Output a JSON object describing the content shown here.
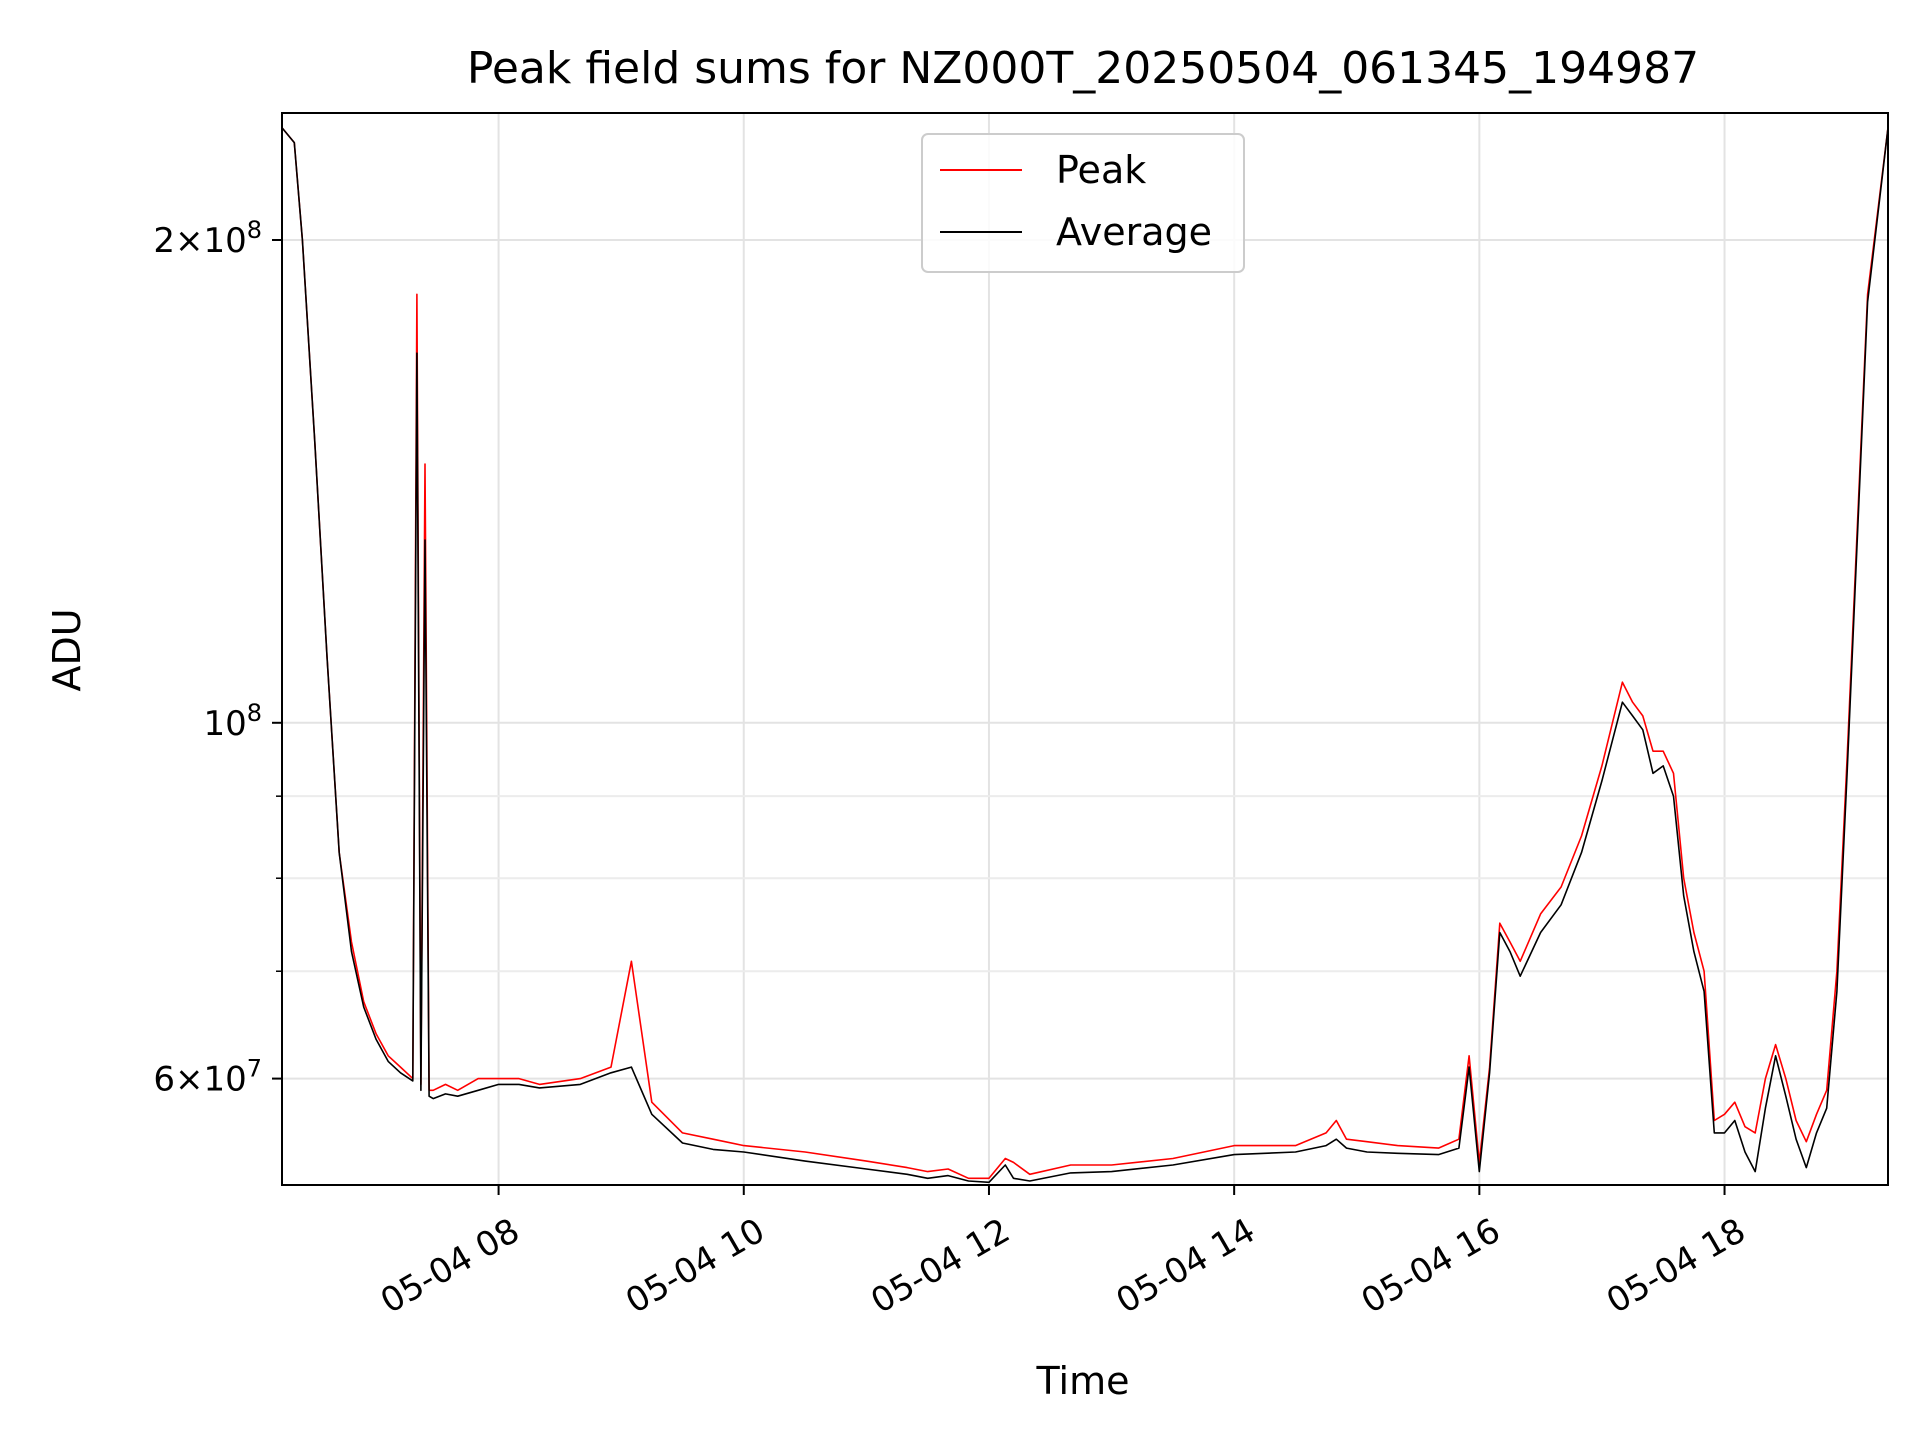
{
  "chart_data": {
    "type": "line",
    "title": "Peak field sums for NZ000T_20250504_061345_194987",
    "xlabel": "Time",
    "ylabel": "ADU",
    "yscale": "log",
    "xlim": [
      "05-04 06:14",
      "05-04 19:20"
    ],
    "ylim": [
      51500000,
      240000000
    ],
    "grid": true,
    "legend_position": "upper center",
    "x_tick_labels": [
      "05-04 08",
      "05-04 10",
      "05-04 12",
      "05-04 14",
      "05-04 16",
      "05-04 18"
    ],
    "x_tick_times": [
      "05-04 08:00",
      "05-04 10:00",
      "05-04 12:00",
      "05-04 14:00",
      "05-04 16:00",
      "05-04 18:00"
    ],
    "y_tick_labels": [
      {
        "value": 60000000,
        "mantissa": "6",
        "exponent": "7"
      },
      {
        "value": 100000000,
        "mantissa": "",
        "exponent": "8"
      },
      {
        "value": 200000000,
        "mantissa": "2",
        "exponent": "8"
      }
    ],
    "y_minor_ticks": [
      70000000,
      80000000,
      90000000
    ],
    "series": [
      {
        "name": "Peak",
        "color": "#ff0000",
        "x": [
          "05-04 06:14",
          "05-04 06:20",
          "05-04 06:24",
          "05-04 06:30",
          "05-04 06:36",
          "05-04 06:42",
          "05-04 06:48",
          "05-04 06:54",
          "05-04 07:00",
          "05-04 07:06",
          "05-04 07:12",
          "05-04 07:18",
          "05-04 07:20",
          "05-04 07:22",
          "05-04 07:24",
          "05-04 07:26",
          "05-04 07:28",
          "05-04 07:34",
          "05-04 07:40",
          "05-04 07:50",
          "05-04 08:00",
          "05-04 08:10",
          "05-04 08:20",
          "05-04 08:40",
          "05-04 08:55",
          "05-04 09:05",
          "05-04 09:15",
          "05-04 09:30",
          "05-04 09:45",
          "05-04 10:00",
          "05-04 10:30",
          "05-04 11:00",
          "05-04 11:20",
          "05-04 11:30",
          "05-04 11:40",
          "05-04 11:50",
          "05-04 12:00",
          "05-04 12:08",
          "05-04 12:12",
          "05-04 12:20",
          "05-04 12:40",
          "05-04 13:00",
          "05-04 13:30",
          "05-04 14:00",
          "05-04 14:30",
          "05-04 14:45",
          "05-04 14:50",
          "05-04 14:55",
          "05-04 15:05",
          "05-04 15:20",
          "05-04 15:40",
          "05-04 15:50",
          "05-04 15:55",
          "05-04 16:00",
          "05-04 16:05",
          "05-04 16:10",
          "05-04 16:15",
          "05-04 16:20",
          "05-04 16:30",
          "05-04 16:40",
          "05-04 16:50",
          "05-04 17:00",
          "05-04 17:10",
          "05-04 17:15",
          "05-04 17:20",
          "05-04 17:25",
          "05-04 17:30",
          "05-04 17:35",
          "05-04 17:40",
          "05-04 17:45",
          "05-04 17:50",
          "05-04 17:55",
          "05-04 18:00",
          "05-04 18:05",
          "05-04 18:10",
          "05-04 18:15",
          "05-04 18:20",
          "05-04 18:25",
          "05-04 18:30",
          "05-04 18:35",
          "05-04 18:40",
          "05-04 18:45",
          "05-04 18:50",
          "05-04 18:55",
          "05-04 19:00",
          "05-04 19:10",
          "05-04 19:20"
        ],
        "y": [
          235000000,
          230000000,
          200000000,
          150000000,
          110000000,
          83000000,
          73000000,
          67000000,
          64000000,
          62000000,
          61000000,
          60000000,
          185000000,
          59500000,
          145000000,
          59000000,
          59000000,
          59500000,
          59000000,
          60000000,
          60000000,
          60000000,
          59500000,
          60000000,
          61000000,
          71000000,
          58000000,
          55500000,
          55000000,
          54500000,
          54000000,
          53300000,
          52800000,
          52500000,
          52700000,
          52000000,
          52000000,
          53500000,
          53200000,
          52300000,
          53000000,
          53000000,
          53500000,
          54500000,
          54500000,
          55500000,
          56500000,
          55000000,
          54800000,
          54500000,
          54300000,
          55000000,
          62000000,
          53200000,
          61000000,
          75000000,
          73000000,
          71000000,
          76000000,
          79000000,
          85000000,
          94000000,
          106000000,
          103000000,
          101000000,
          96000000,
          96000000,
          93000000,
          80000000,
          74000000,
          70000000,
          56500000,
          57000000,
          58000000,
          56000000,
          55500000,
          60000000,
          63000000,
          60000000,
          56500000,
          54800000,
          57000000,
          59000000,
          70000000,
          95000000,
          185000000,
          235000000
        ]
      },
      {
        "name": "Average",
        "color": "#000000",
        "x": [
          "05-04 06:14",
          "05-04 06:20",
          "05-04 06:24",
          "05-04 06:30",
          "05-04 06:36",
          "05-04 06:42",
          "05-04 06:48",
          "05-04 06:54",
          "05-04 07:00",
          "05-04 07:06",
          "05-04 07:12",
          "05-04 07:18",
          "05-04 07:20",
          "05-04 07:22",
          "05-04 07:24",
          "05-04 07:26",
          "05-04 07:28",
          "05-04 07:34",
          "05-04 07:40",
          "05-04 07:50",
          "05-04 08:00",
          "05-04 08:10",
          "05-04 08:20",
          "05-04 08:40",
          "05-04 08:55",
          "05-04 09:05",
          "05-04 09:15",
          "05-04 09:30",
          "05-04 09:45",
          "05-04 10:00",
          "05-04 10:30",
          "05-04 11:00",
          "05-04 11:20",
          "05-04 11:30",
          "05-04 11:40",
          "05-04 11:50",
          "05-04 12:00",
          "05-04 12:08",
          "05-04 12:12",
          "05-04 12:20",
          "05-04 12:40",
          "05-04 13:00",
          "05-04 13:30",
          "05-04 14:00",
          "05-04 14:30",
          "05-04 14:45",
          "05-04 14:50",
          "05-04 14:55",
          "05-04 15:05",
          "05-04 15:20",
          "05-04 15:40",
          "05-04 15:50",
          "05-04 15:55",
          "05-04 16:00",
          "05-04 16:05",
          "05-04 16:10",
          "05-04 16:15",
          "05-04 16:20",
          "05-04 16:30",
          "05-04 16:40",
          "05-04 16:50",
          "05-04 17:00",
          "05-04 17:10",
          "05-04 17:15",
          "05-04 17:20",
          "05-04 17:25",
          "05-04 17:30",
          "05-04 17:35",
          "05-04 17:40",
          "05-04 17:45",
          "05-04 17:50",
          "05-04 17:55",
          "05-04 18:00",
          "05-04 18:05",
          "05-04 18:10",
          "05-04 18:15",
          "05-04 18:20",
          "05-04 18:25",
          "05-04 18:30",
          "05-04 18:35",
          "05-04 18:40",
          "05-04 18:45",
          "05-04 18:50",
          "05-04 18:55",
          "05-04 19:00",
          "05-04 19:10",
          "05-04 19:20"
        ],
        "y": [
          235000000,
          230000000,
          200000000,
          150000000,
          110000000,
          83000000,
          72000000,
          66500000,
          63500000,
          61500000,
          60500000,
          59800000,
          170000000,
          59000000,
          130000000,
          58500000,
          58300000,
          58700000,
          58500000,
          59000000,
          59500000,
          59500000,
          59200000,
          59500000,
          60500000,
          61000000,
          57000000,
          54700000,
          54200000,
          54000000,
          53300000,
          52700000,
          52300000,
          52000000,
          52200000,
          51800000,
          51700000,
          53000000,
          52000000,
          51800000,
          52400000,
          52500000,
          53000000,
          53800000,
          54000000,
          54500000,
          55000000,
          54300000,
          54000000,
          53900000,
          53800000,
          54300000,
          61000000,
          52500000,
          60500000,
          74000000,
          72000000,
          69500000,
          74000000,
          77000000,
          83000000,
          92000000,
          103000000,
          101000000,
          99000000,
          93000000,
          94000000,
          90000000,
          78000000,
          72000000,
          68000000,
          55500000,
          55500000,
          56500000,
          54000000,
          52500000,
          57500000,
          62000000,
          58500000,
          55000000,
          52800000,
          55500000,
          57500000,
          68000000,
          93000000,
          183000000,
          235000000
        ]
      }
    ]
  }
}
